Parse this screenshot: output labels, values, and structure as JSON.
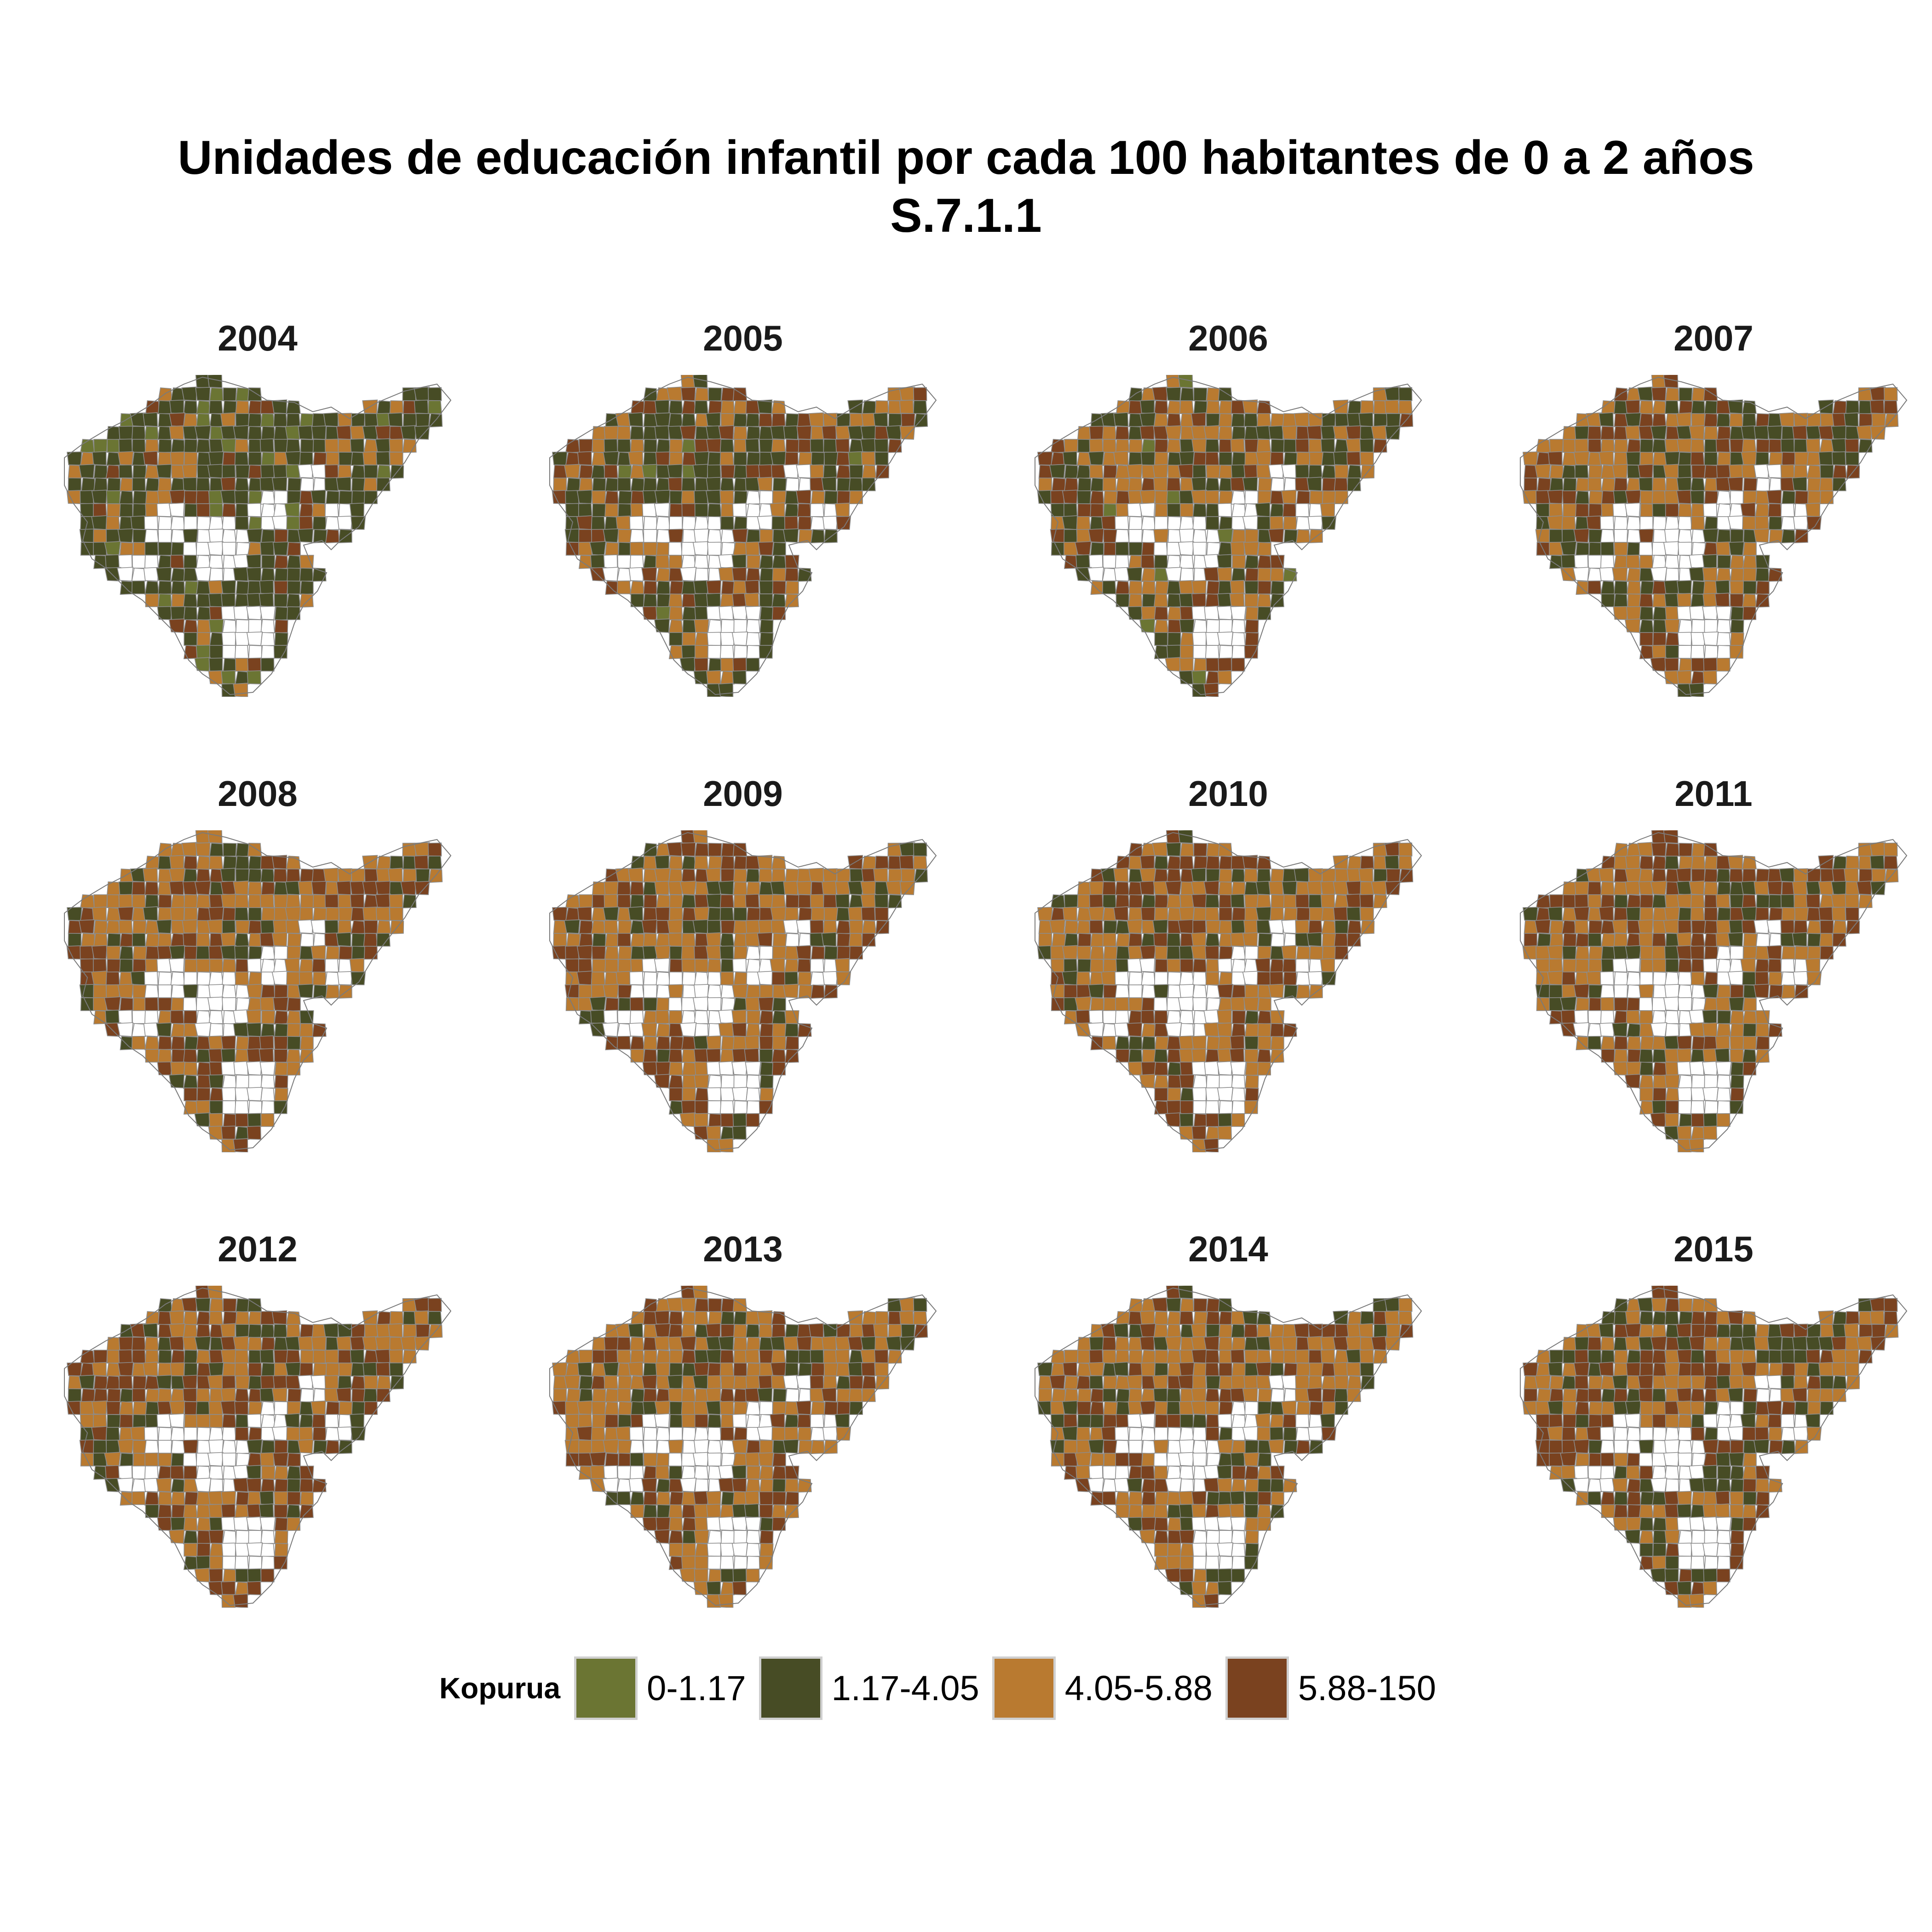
{
  "title": "Unidades de educación infantil por cada 100 habitantes de 0 a 2 años",
  "subtitle": "S.7.1.1",
  "legend": {
    "title": "Kopurua",
    "items": [
      {
        "label": "0-1.17",
        "color": "#6b7533"
      },
      {
        "label": "1.17-4.05",
        "color": "#474c25"
      },
      {
        "label": "4.05-5.88",
        "color": "#b97a30"
      },
      {
        "label": "5.88-150",
        "color": "#7a421f"
      }
    ]
  },
  "panels": [
    {
      "year": "2004",
      "shares": [
        0.1,
        0.62,
        0.18,
        0.1
      ]
    },
    {
      "year": "2005",
      "shares": [
        0.02,
        0.45,
        0.3,
        0.23
      ]
    },
    {
      "year": "2006",
      "shares": [
        0.02,
        0.35,
        0.38,
        0.25
      ]
    },
    {
      "year": "2007",
      "shares": [
        0.0,
        0.33,
        0.37,
        0.3
      ]
    },
    {
      "year": "2008",
      "shares": [
        0.0,
        0.22,
        0.45,
        0.33
      ]
    },
    {
      "year": "2009",
      "shares": [
        0.0,
        0.2,
        0.48,
        0.32
      ]
    },
    {
      "year": "2010",
      "shares": [
        0.0,
        0.2,
        0.47,
        0.33
      ]
    },
    {
      "year": "2011",
      "shares": [
        0.0,
        0.2,
        0.44,
        0.36
      ]
    },
    {
      "year": "2012",
      "shares": [
        0.0,
        0.22,
        0.42,
        0.36
      ]
    },
    {
      "year": "2013",
      "shares": [
        0.0,
        0.22,
        0.48,
        0.3
      ]
    },
    {
      "year": "2014",
      "shares": [
        0.0,
        0.25,
        0.42,
        0.33
      ]
    },
    {
      "year": "2015",
      "shares": [
        0.0,
        0.25,
        0.4,
        0.35
      ]
    }
  ]
}
